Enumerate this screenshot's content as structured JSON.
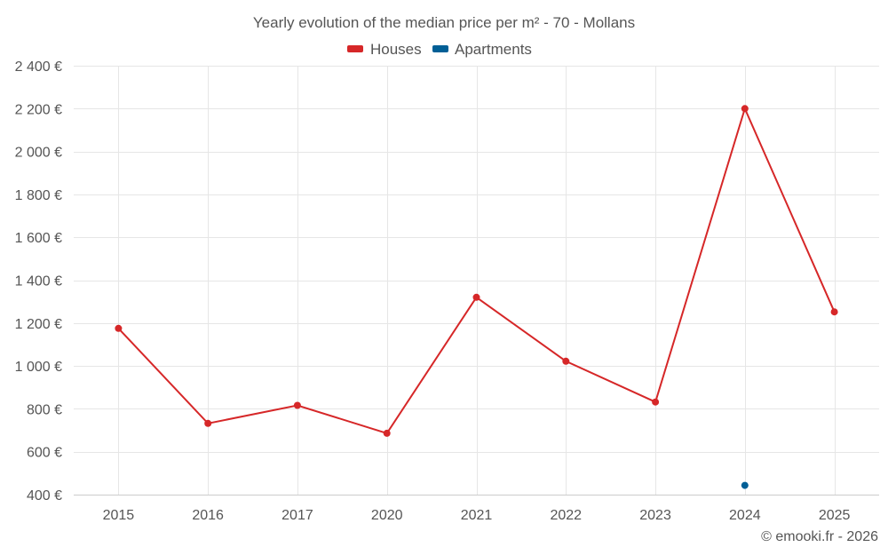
{
  "chart_data": {
    "type": "line",
    "title": "Yearly evolution of the median price per m² - 70 - Mollans",
    "categories": [
      "2015",
      "2016",
      "2017",
      "2020",
      "2021",
      "2022",
      "2023",
      "2024",
      "2025"
    ],
    "series": [
      {
        "name": "Houses",
        "color": "#d62728",
        "values": [
          1175,
          732,
          816,
          686,
          1320,
          1022,
          832,
          2200,
          1252
        ]
      },
      {
        "name": "Apartments",
        "color": "#005f96",
        "values": [
          null,
          null,
          null,
          null,
          null,
          null,
          null,
          443,
          null
        ]
      }
    ],
    "ylim": [
      400,
      2400
    ],
    "yticks": [
      400,
      600,
      800,
      1000,
      1200,
      1400,
      1600,
      1800,
      2000,
      2200,
      2400
    ],
    "ytick_labels": [
      "400 €",
      "600 €",
      "800 €",
      "1 000 €",
      "1 200 €",
      "1 400 €",
      "1 600 €",
      "1 800 €",
      "2 000 €",
      "2 200 €",
      "2 400 €"
    ],
    "xlabel": "",
    "ylabel": "",
    "grid": true,
    "legend_position": "top-center",
    "credit": "© emooki.fr - 2026"
  }
}
